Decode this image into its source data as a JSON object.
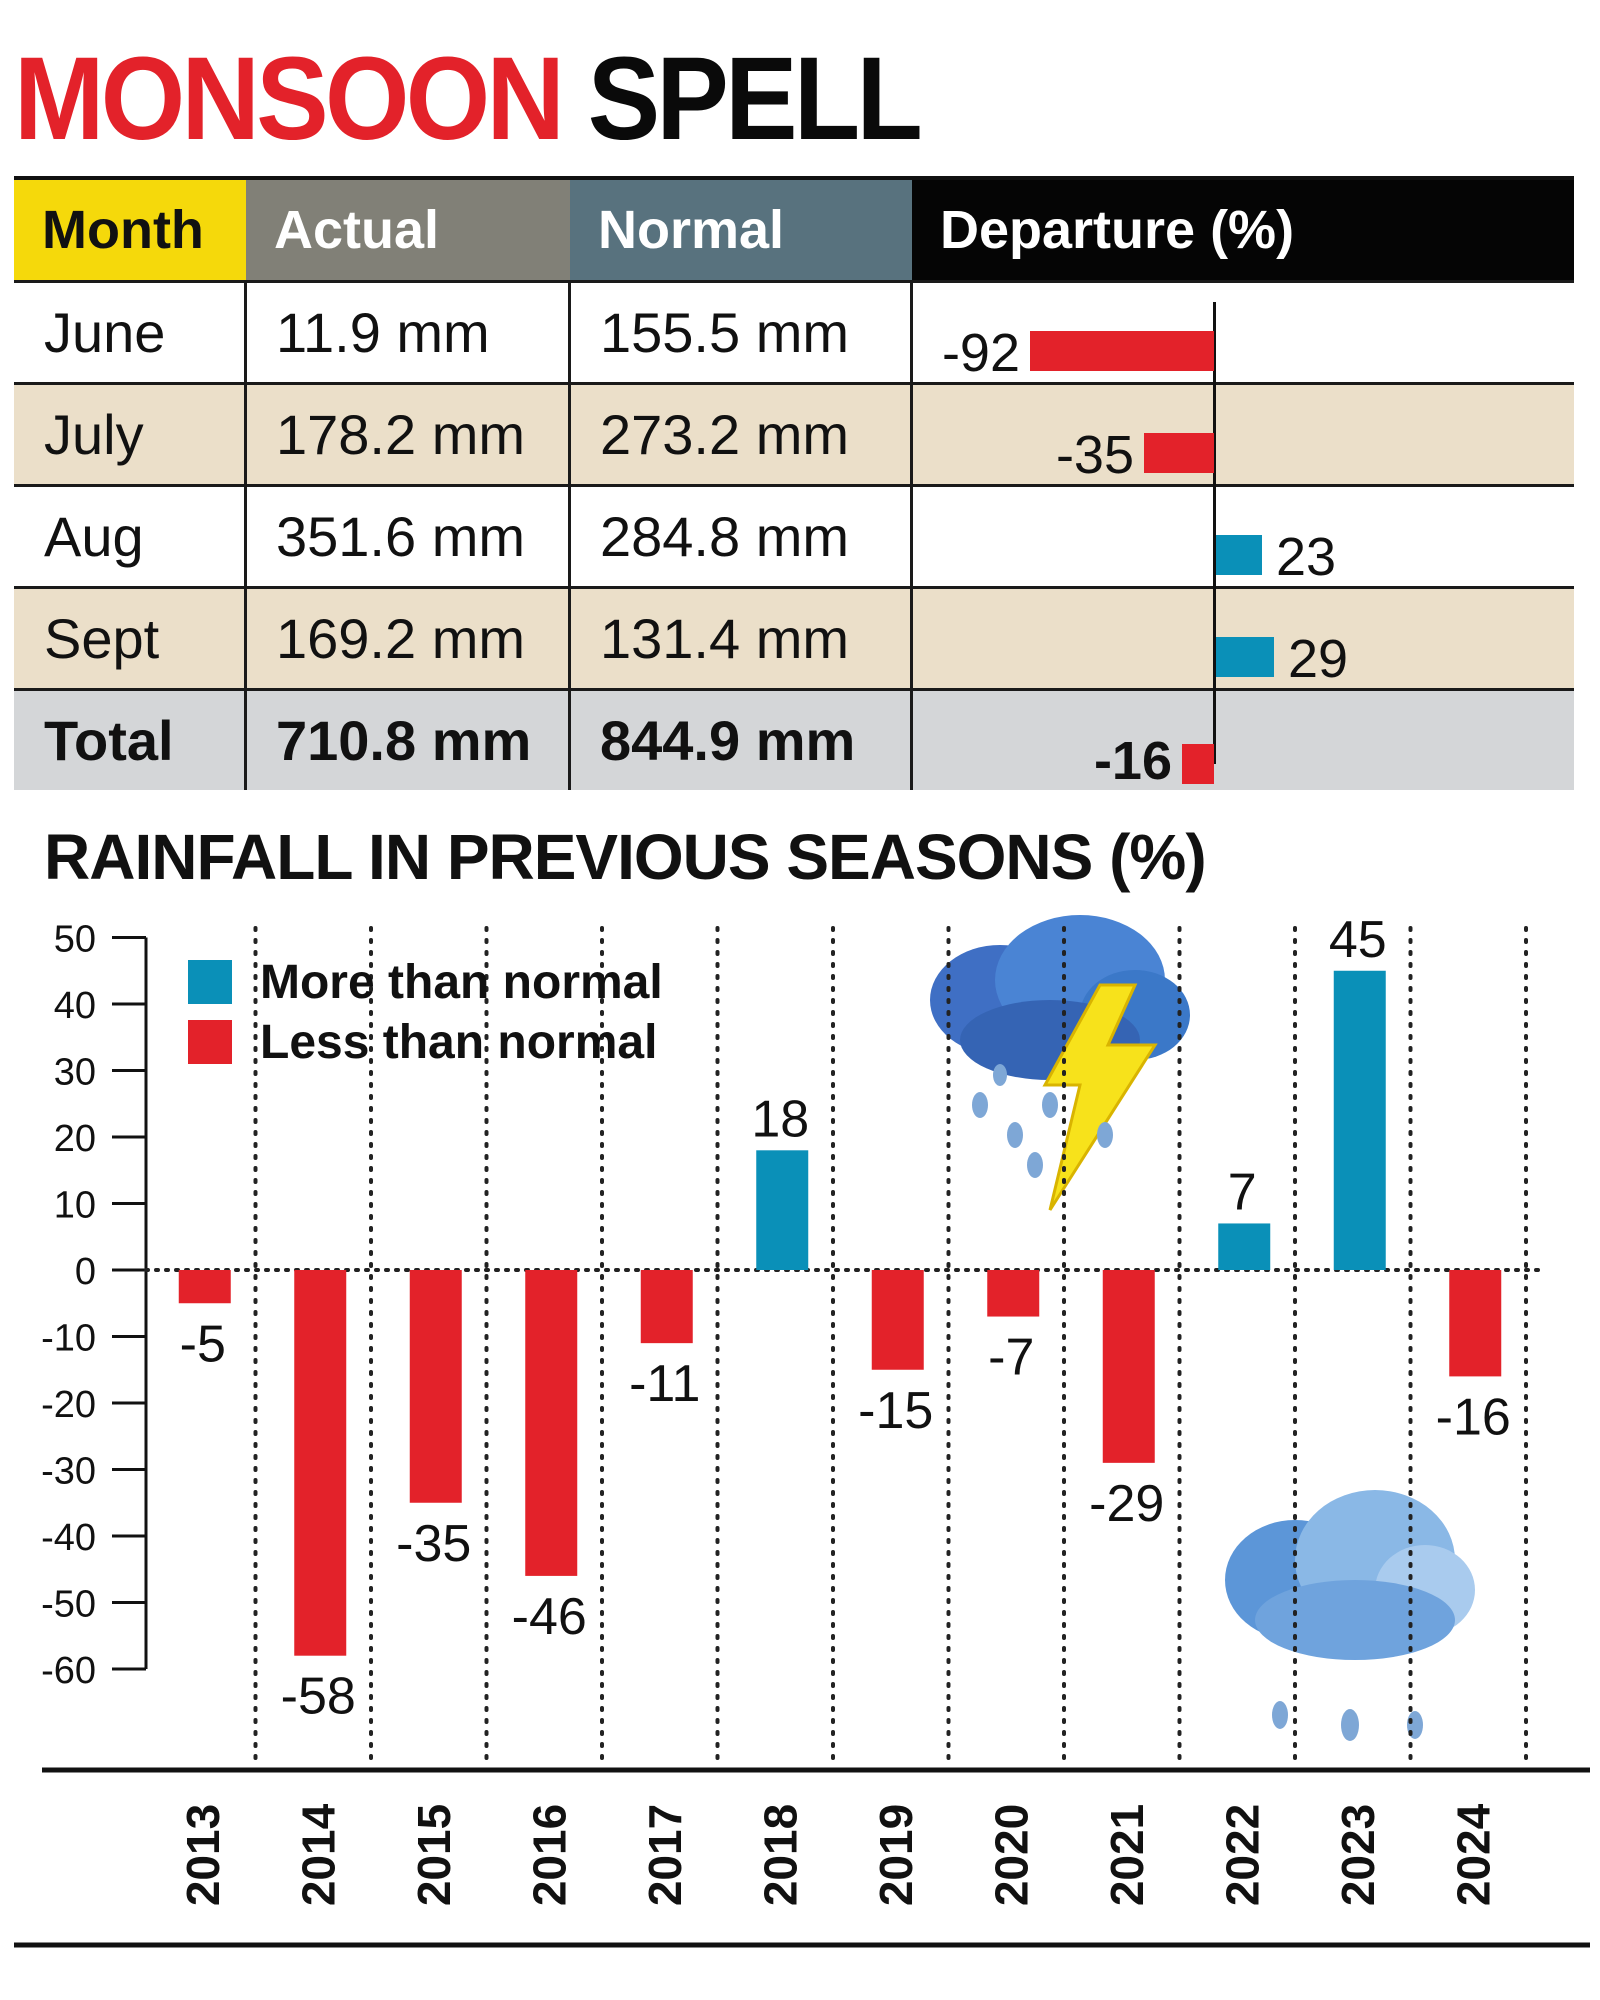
{
  "title": {
    "part1": "MONSOON",
    "part2": "SPELL"
  },
  "table": {
    "headers": [
      "Month",
      "Actual",
      "Normal",
      "Departure (%)"
    ],
    "rows": [
      {
        "month": "June",
        "actual": "11.9 mm",
        "normal": "155.5 mm",
        "departure": "-92",
        "value": -92
      },
      {
        "month": "July",
        "actual": "178.2 mm",
        "normal": "273.2 mm",
        "departure": "-35",
        "value": -35
      },
      {
        "month": "Aug",
        "actual": "351.6 mm",
        "normal": "284.8 mm",
        "departure": "23",
        "value": 23
      },
      {
        "month": "Sept",
        "actual": "169.2 mm",
        "normal": "131.4 mm",
        "departure": "29",
        "value": 29
      }
    ],
    "total": {
      "month": "Total",
      "actual": "710.8 mm",
      "normal": "844.9 mm",
      "departure": "-16",
      "value": -16
    }
  },
  "colors": {
    "red": "#e3222a",
    "blue": "#0a90b8",
    "yellow": "#f5d90b",
    "beige": "#ebdfc9",
    "grey": "#d4d6d8"
  },
  "chart_data": {
    "type": "bar",
    "title": "RAINFALL IN PREVIOUS SEASONS (%)",
    "categories": [
      "2013",
      "2014",
      "2015",
      "2016",
      "2017",
      "2018",
      "2019",
      "2020",
      "2021",
      "2022",
      "2023",
      "2024"
    ],
    "values": [
      -5,
      -58,
      -35,
      -46,
      -11,
      18,
      -15,
      -7,
      -29,
      7,
      45,
      -16
    ],
    "ylim": [
      -60,
      50
    ],
    "yticks": [
      50,
      40,
      30,
      20,
      10,
      0,
      -10,
      -20,
      -30,
      -40,
      -50,
      -60
    ],
    "legend": [
      {
        "label": "More than normal",
        "color": "#0a90b8"
      },
      {
        "label": "Less than normal",
        "color": "#e3222a"
      }
    ],
    "legend_position": "top-left",
    "grid": "vertical dotted",
    "icons": [
      "storm-cloud-icon",
      "rain-cloud-icon"
    ]
  }
}
